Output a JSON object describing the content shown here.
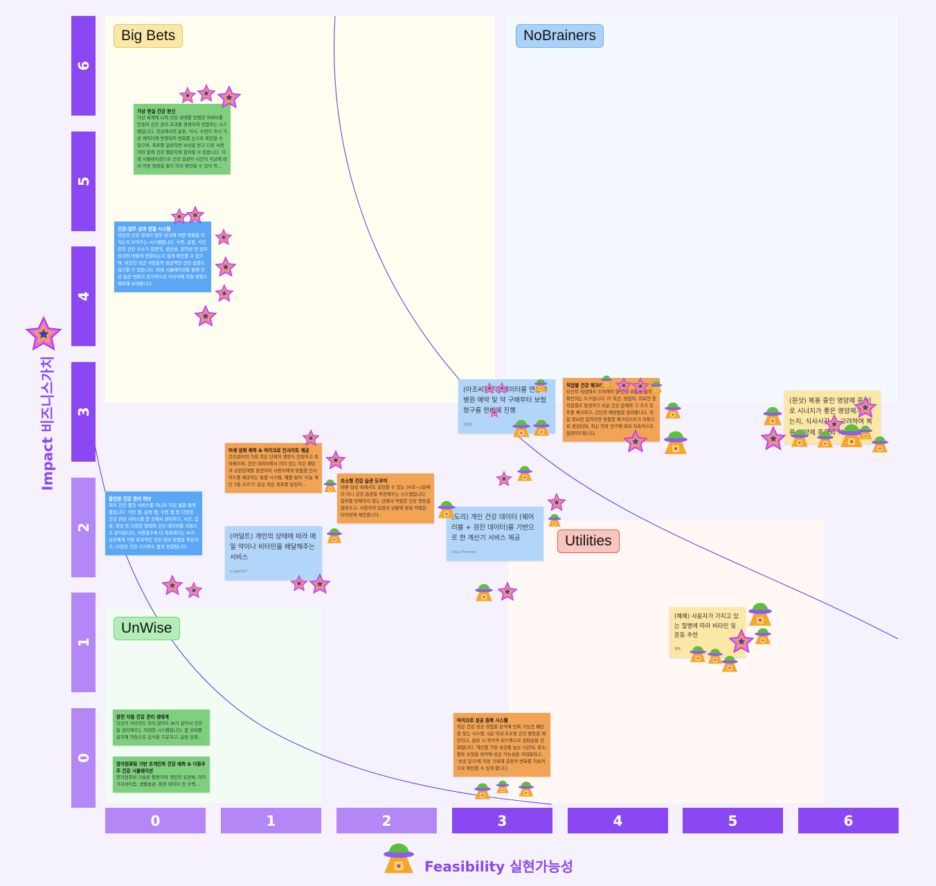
{
  "colors": {
    "axis_dark": "#8B47F2",
    "axis_light": "#B487F6",
    "bigbets": "#FFFEF0",
    "nobrainers": "#F3F9FF",
    "unwise": "#F2FCF4",
    "utilities": "#FFF8F4"
  },
  "y_axis": {
    "title": "Impact 비즈니스가치",
    "ticks": [
      "6",
      "5",
      "4",
      "3",
      "2",
      "1",
      "0"
    ],
    "icon": "star-icon"
  },
  "x_axis": {
    "title": "Feasibility 실현가능성",
    "ticks": [
      "0",
      "1",
      "2",
      "3",
      "4",
      "5",
      "6"
    ],
    "icon": "ufo-icon"
  },
  "quadrants": {
    "big_bets": "Big Bets",
    "no_brainers": "NoBrainers",
    "unwise": "UnWise",
    "utilities": "Utilities"
  },
  "stickies": [
    {
      "title": "가상 현실 건강 분신",
      "body": "가상 세계에 나의 건강 상태를 반영한 아바타를 만들어 건강 관리 효과를 생생하게 경험하는 시스템입니다. 현실에서의 운동, 식사, 수면이 즉시 가상 캐릭터에 반영되어 변화를 눈으로 확인할 수 있으며, 목표를 달성하면 보상을 받고 다른 사용자와 함께 건강 챌린지에 참여할 수 있습니다. 미래 시뮬레이션으로 건강 습관이 시간이 지남에 따라 어떤 영향을 줄지 미리 확인할 수 있어 즉..."
    },
    {
      "title": "건강-업무 성과 연결 시스템",
      "body": "당신의 건강 상태가 업무 성과에 어떤 영향을 미치는지 보여주는 시스템입니다. 수면, 운동, 식단 등의 건강 요소가 집중력, 생산성, 창의성 등 업무 성과와 어떻게 연결되는지 쉽게 확인할 수 있으며, 비슷한 직군 사람들의 성공적인 건강 습관도 참고할 수 있습니다. 미래 시뮬레이션을 통해 건강 습관 변화가 장기적으로 커리어에 미칠 영향도 예측해 보여줍니다."
    },
    {
      "title": "",
      "body": "(아조씨) 건강 데이터를 연동해 병원 예약 및 약 구매부터 보험 청구를 한번에 진행",
      "author": "양정원"
    },
    {
      "title": "직업별 건강 체크리스트",
      "body": "당신의 직업에서 주의해야 할 건강 위험을 쉽게 확인하는 도구입니다. IT 직군, 영업직, 의료인 등 직업별로 발생하기 쉬운 건강 문제와 그 초기 징후를 체크하고, 간단한 예방법을 알려줍니다. 직업 정보만 입력하면 맞춤형 체크리스트가 자동으로 생성되며, 최신 의학 연구에 따라 지속적으로 업데이트됩니다."
    },
    {
      "title": "",
      "body": "(원샷) 복용 중인 영양제 중 서로 시너지가 좋은 영양제가 있는지, 식사시간 등 고려하여 복용 영양제 종류와 복용 시간"
    },
    {
      "title": "올인원 건강 관리 허브",
      "body": "여러 건강 앱과 서비스를 하나로 모은 통합 플랫폼입니다. 식단 앱, 운동 앱, 수면 앱 등 다양한 건강 관련 서비스를 한 곳에서 관리하고, 사진, 음성, 영상 등 다양한 형태의 건강 데이터를 자동으로 분석합니다. 사용할수록 더 똑똑해지는 AI가 당신에게 가장 효과적인 건강 관리 방법을 추천하고, 다양한 건강 기기와도 쉽게 연결됩니다."
    },
    {
      "title": "미세 성취 축하 & 마이크로 인사이트 제공",
      "body": "건강관리의 가장 작은 단위의 행동도 인정하고 축하해주며, 건강 데이터에서 의미 있는 작은 패턴과 상관관계를 발견하여 사용자에게 맞춤형 인사이트를 제공하는 통합 시스템. 예를 들어 '오늘 계단 3층 오르기' 같은 작은 목표를 달성하..."
    },
    {
      "title": "",
      "body": "(어덜트) 개인의 상태에 따라 매일 약이나 비타민을 배달해주는 서비스",
      "author": "a.ngin007"
    },
    {
      "title": "초소형 건강 습관 도우미",
      "body": "바쁜 일상 속에서도 실천할 수 있는 30초~2분짜리 미니 건강 습관을 추천해주는 시스템입니다. 업무를 방해하지 않는 선에서 적절한 건강 행동을 알려주고, 사용자의 일정과 상황에 맞춰 적절한 타이밍에 제안합니다."
    },
    {
      "title": "",
      "body": "(도리) 개인 건강 데이터 (웨어러블 + 검진 데이터)를 기반으로 한 계산기 서비스 제공",
      "author": "Uma Thurman"
    },
    {
      "title": "",
      "body": "(혜혜) 사용자가 가지고 있는 질병에 따라 비타민 및 운동 추천",
      "author": "혜혜"
    },
    {
      "title": "완전 자동 건강 관리 생태계",
      "body": "당신이 아무것도 하지 않아도 AI가 알아서 건강을 관리해주는 미래형 시스템입니다. 몸 상태를 감지해 자동으로 음식을 주문하고, 운동 일정..."
    },
    {
      "title": "양자컴퓨팅 기반 초개인화 건강 예측 & 다중우주 건강 시뮬레이션",
      "body": "양자컴퓨팅 기술을 활용하여 개인의 유전체, 마이크로바이옴, 생활습관, 환경 데이터 등 수백..."
    },
    {
      "title": "마이크로 성공 증폭 시스템",
      "body": "작은 건강 성공 경험을 분석해 반복 가능한 패턴을 찾는 시스템. 5분 이내 초소형 건강 활동을 제안하고, 완료 시 즉각적 피드백으로 성취감을 강화합니다. 개인별 가장 성공률 높은 시간대, 장소, 활동 유형을 파악해 성공 가능성을 극대화하고, '성공 일기'에 자동 기록해 긍정적 변화를 지속적으로 확인할 수 있게 합니다."
    }
  ]
}
